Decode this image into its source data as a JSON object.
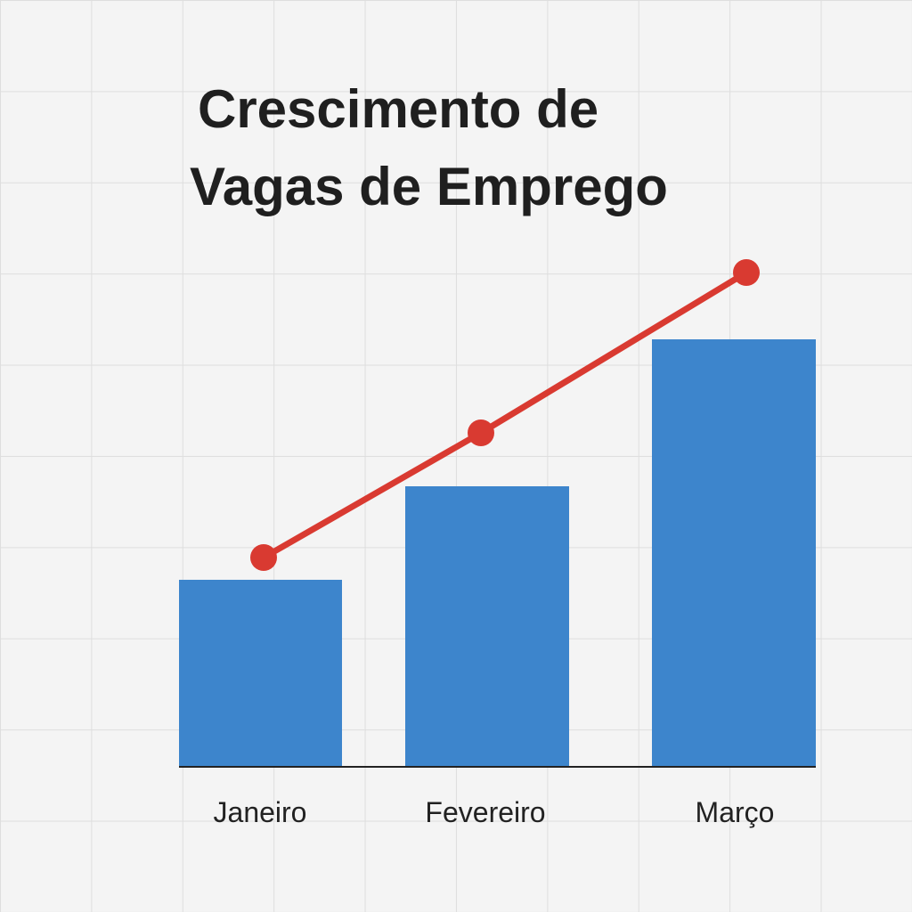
{
  "chart_data": {
    "type": "combo",
    "title": [
      "Crescimento de",
      "Vagas de Emprego"
    ],
    "categories": [
      "Janeiro",
      "Fevereiro",
      "Março"
    ],
    "series": [
      {
        "type": "bar",
        "color": "#3d85cc",
        "values": [
          210,
          315,
          480
        ]
      },
      {
        "type": "line",
        "color": "#d93a31",
        "values": [
          235,
          375,
          555
        ]
      }
    ],
    "ylim": [
      0,
      600
    ]
  }
}
